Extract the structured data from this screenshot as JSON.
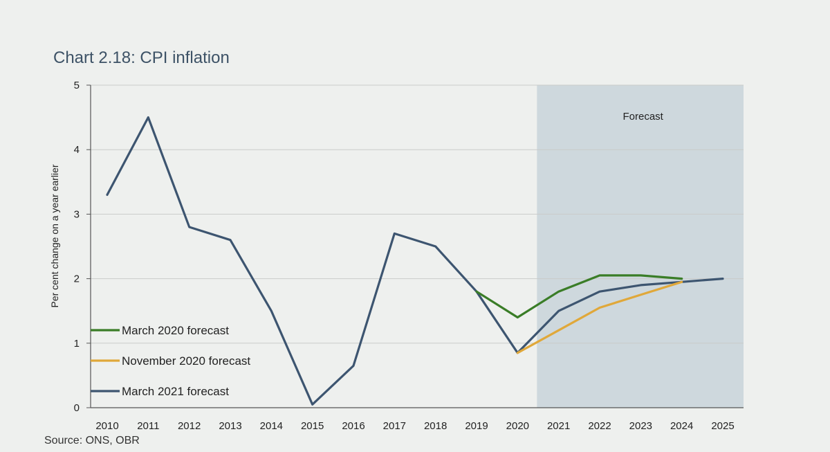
{
  "chart_data": {
    "type": "line",
    "title": "Chart 2.18: CPI inflation",
    "source": "Source: ONS, OBR",
    "ylabel": "Per cent change on a year earlier",
    "xlabel": "",
    "ylim": [
      0,
      5
    ],
    "yticks": [
      "0",
      "1",
      "2",
      "3",
      "4",
      "5"
    ],
    "x": [
      "2010",
      "2011",
      "2012",
      "2013",
      "2014",
      "2015",
      "2016",
      "2017",
      "2018",
      "2019",
      "2020",
      "2021",
      "2022",
      "2023",
      "2024",
      "2025"
    ],
    "forecast_label": "Forecast",
    "forecast_start": "2020",
    "forecast_end": "2025",
    "grid": true,
    "legend_position": "bottom-left",
    "series": [
      {
        "name": "March 2020 forecast",
        "color": "#3a7d27",
        "x": [
          "2019",
          "2020",
          "2021",
          "2022",
          "2023",
          "2024"
        ],
        "values": [
          1.8,
          1.4,
          1.8,
          2.05,
          2.05,
          2.0
        ]
      },
      {
        "name": "November 2020 forecast",
        "color": "#e0a83a",
        "x": [
          "2020",
          "2021",
          "2022",
          "2023",
          "2024"
        ],
        "values": [
          0.85,
          1.2,
          1.55,
          1.75,
          1.95
        ]
      },
      {
        "name": "March 2021 forecast",
        "color": "#3d5570",
        "x": [
          "2010",
          "2011",
          "2012",
          "2013",
          "2014",
          "2015",
          "2016",
          "2017",
          "2018",
          "2019",
          "2020",
          "2021",
          "2022",
          "2023",
          "2024",
          "2025"
        ],
        "values": [
          3.3,
          4.5,
          2.8,
          2.6,
          1.5,
          0.05,
          0.65,
          2.7,
          2.5,
          1.8,
          0.85,
          1.5,
          1.8,
          1.9,
          1.95,
          2.0
        ]
      }
    ]
  }
}
